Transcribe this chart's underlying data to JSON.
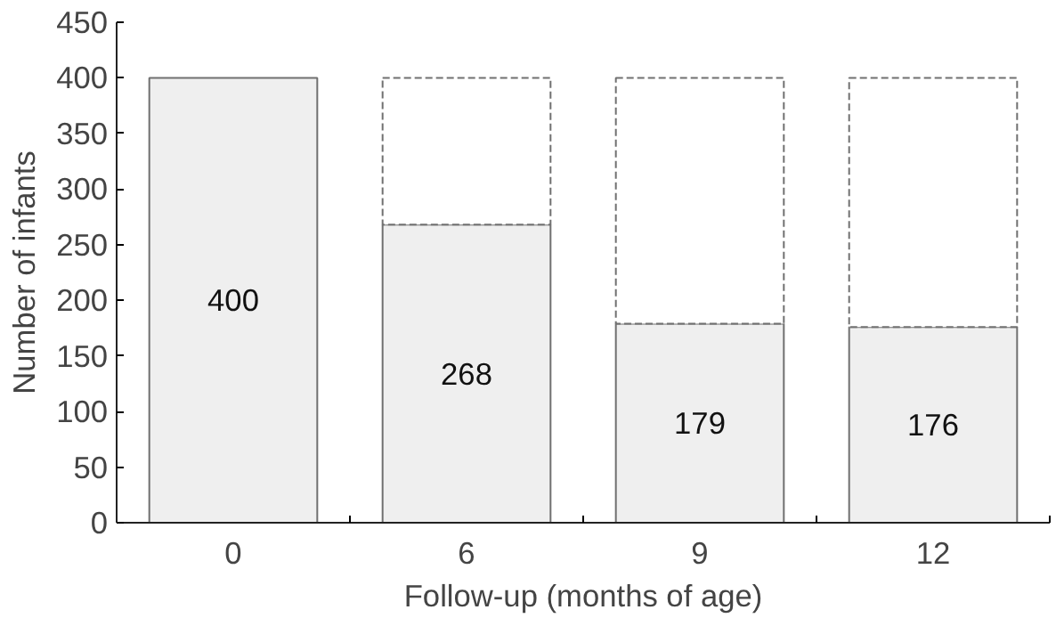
{
  "chart_data": {
    "type": "bar",
    "stacked": true,
    "xlabel": "Follow-up (months of age)",
    "ylabel": "Number of infants",
    "categories": [
      "0",
      "6",
      "9",
      "12"
    ],
    "series": [
      {
        "color": "#efefef",
        "values": [
          400,
          268,
          179,
          176
        ],
        "value_labels": [
          "400",
          "268",
          "179",
          "176"
        ],
        "line_style": "solid"
      },
      {
        "color": "#ffffff",
        "values": [
          0,
          132,
          221,
          224
        ],
        "line_style": "dashed"
      }
    ],
    "ylim": [
      0,
      450
    ],
    "yticks": [
      0,
      50,
      100,
      150,
      200,
      250,
      300,
      350,
      400,
      450
    ],
    "grid": false
  }
}
